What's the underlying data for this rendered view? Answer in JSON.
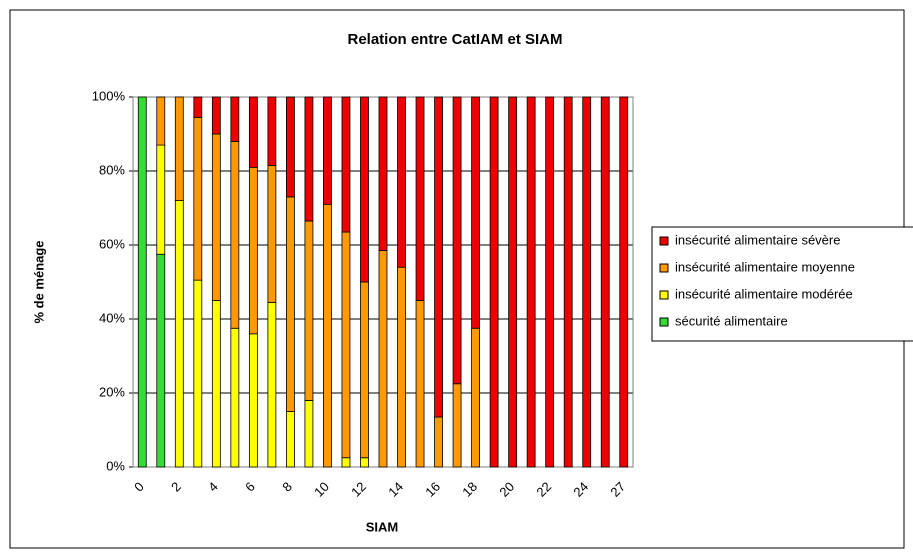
{
  "chart_data": {
    "type": "stacked_bar",
    "title": "Relation entre CatIAM et SIAM",
    "x_label": "SIAM",
    "y_label": "% de ménage",
    "categories": [
      0,
      null,
      2,
      null,
      4,
      null,
      6,
      null,
      8,
      null,
      10,
      null,
      12,
      null,
      14,
      null,
      16,
      null,
      18,
      null,
      20,
      null,
      22,
      null,
      24,
      null,
      27
    ],
    "series": [
      {
        "name": "sécurité alimentaire",
        "color": "#33dd33",
        "values": [
          100,
          57.5,
          0,
          0,
          0,
          0,
          0,
          0,
          0,
          0,
          0,
          0,
          0,
          0,
          0,
          0,
          0,
          0,
          0,
          0,
          0,
          0,
          0,
          0,
          0,
          0,
          0
        ]
      },
      {
        "name": "insécurité alimentaire modérée",
        "color": "#ffff00",
        "values": [
          0,
          29.5,
          72,
          50.5,
          45,
          37.5,
          36,
          44.5,
          15,
          18,
          0,
          2.5,
          2.5,
          0,
          0,
          0,
          0,
          0,
          0,
          0,
          0,
          0,
          0,
          0,
          0,
          0,
          0
        ]
      },
      {
        "name": "insécurité alimentaire moyenne",
        "color": "#ff9900",
        "values": [
          0,
          13,
          28,
          44,
          45,
          50.5,
          45,
          37,
          58,
          48.5,
          71,
          61,
          47.5,
          58.5,
          54,
          45,
          13.5,
          22.5,
          37.5,
          0,
          0,
          0,
          0,
          0,
          0,
          0,
          0
        ]
      },
      {
        "name": "insécurité alimentaire sévère",
        "color": "#ee0000",
        "values": [
          0,
          0,
          0,
          5.5,
          10,
          12,
          19,
          18.5,
          27,
          33.5,
          29,
          36.5,
          50,
          41.5,
          46,
          55,
          86.5,
          77.5,
          62.5,
          100,
          100,
          100,
          100,
          100,
          100,
          100,
          100
        ]
      }
    ],
    "ylim": [
      0,
      100
    ],
    "yticks": [
      {
        "value": 0,
        "label": "0%"
      },
      {
        "value": 20,
        "label": "20%"
      },
      {
        "value": 40,
        "label": "40%"
      },
      {
        "value": 60,
        "label": "60%"
      },
      {
        "value": 80,
        "label": "80%"
      },
      {
        "value": 100,
        "label": "100%"
      }
    ],
    "grid": true,
    "legend": "right"
  }
}
